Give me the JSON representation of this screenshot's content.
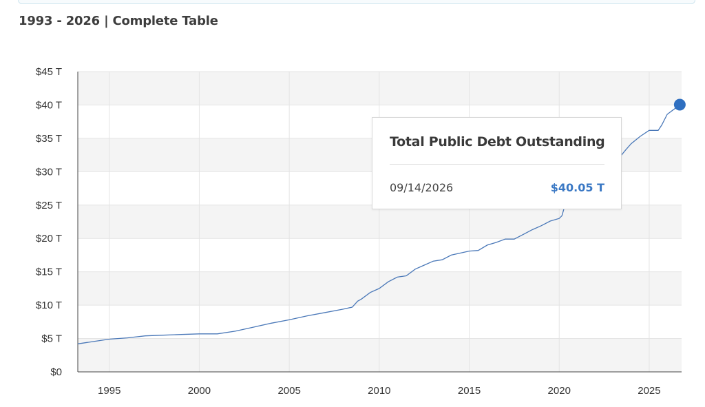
{
  "heading": "1993 - 2026 | Complete Table",
  "colors": {
    "line": "#4a78b8",
    "marker": "#2f6fc0",
    "band": "#f4f4f4",
    "grid": "#e4e4e4",
    "axis": "#444444",
    "tooltip_value": "#3a78c4"
  },
  "tooltip": {
    "title": "Total Public Debt Outstanding",
    "date": "09/14/2026",
    "value": "$40.05 T"
  },
  "chart_data": {
    "type": "line",
    "title": "",
    "xlabel": "",
    "ylabel": "",
    "xlim": [
      1993.25,
      2026.8
    ],
    "ylim": [
      0,
      45
    ],
    "grid": true,
    "legend": "none",
    "x_ticks": [
      1995,
      2000,
      2005,
      2010,
      2015,
      2020,
      2025
    ],
    "x_tick_labels": [
      "1995",
      "2000",
      "2005",
      "2010",
      "2015",
      "2020",
      "2025"
    ],
    "y_ticks": [
      0,
      5,
      10,
      15,
      20,
      25,
      30,
      35,
      40,
      45
    ],
    "y_tick_labels": [
      "$0",
      "$5 T",
      "$10 T",
      "$15 T",
      "$20 T",
      "$25 T",
      "$30 T",
      "$35 T",
      "$40 T",
      "$45 T"
    ],
    "series": [
      {
        "x": [
          1993.25,
          1994.0,
          1995.0,
          1996.0,
          1997.0,
          1998.0,
          1999.0,
          2000.0,
          2001.0,
          2002.0,
          2003.0,
          2004.0,
          2005.0,
          2006.0,
          2007.0,
          2008.0,
          2008.5,
          2008.8,
          2009.0,
          2009.5,
          2010.0,
          2010.5,
          2011.0,
          2011.5,
          2012.0,
          2012.5,
          2013.0,
          2013.5,
          2014.0,
          2014.5,
          2015.0,
          2015.5,
          2016.0,
          2016.5,
          2017.0,
          2017.5,
          2018.0,
          2018.5,
          2019.0,
          2019.5,
          2020.0,
          2020.15,
          2020.3,
          2020.45,
          2021.0,
          2021.5,
          2022.0,
          2022.5,
          2023.0,
          2023.4,
          2023.7,
          2024.0,
          2024.5,
          2025.0,
          2025.5,
          2025.7,
          2026.0,
          2026.3,
          2026.5,
          2026.7
        ],
        "y": [
          4.2,
          4.5,
          4.9,
          5.1,
          5.4,
          5.5,
          5.6,
          5.7,
          5.7,
          6.1,
          6.7,
          7.3,
          7.8,
          8.4,
          8.9,
          9.4,
          9.7,
          10.6,
          10.9,
          11.9,
          12.5,
          13.5,
          14.2,
          14.4,
          15.4,
          16.0,
          16.6,
          16.8,
          17.5,
          17.8,
          18.1,
          18.2,
          19.0,
          19.4,
          19.9,
          19.9,
          20.6,
          21.3,
          21.9,
          22.6,
          23.0,
          23.4,
          24.8,
          26.5,
          28.2,
          28.9,
          29.8,
          30.6,
          31.4,
          32.3,
          33.3,
          34.2,
          35.3,
          36.2,
          36.2,
          37.0,
          38.6,
          39.2,
          39.6,
          40.05
        ]
      }
    ],
    "highlight": {
      "x": 2026.7,
      "y": 40.05
    }
  }
}
